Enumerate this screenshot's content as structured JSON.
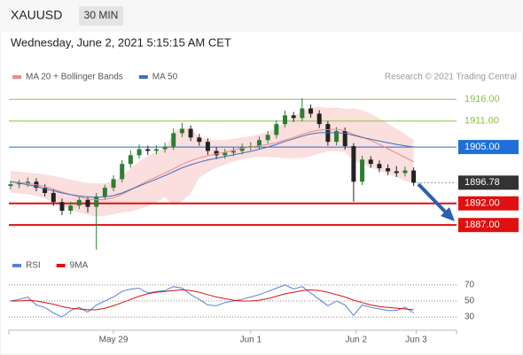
{
  "header": {
    "symbol": "XAUUSD",
    "timeframe": "30 MIN",
    "date": "Wednesday, June 2, 2021 5:15:15 AM CET",
    "source": "Research © 2021 Trading Central"
  },
  "chart_data": [
    {
      "type": "candlestick",
      "up_color": "#2e7d32",
      "down_color": "#222222",
      "xlim": [
        -0.2,
        52
      ],
      "ylim": [
        1880.5,
        1918.5
      ],
      "open": [
        1896.0,
        1896.4,
        1896.6,
        1897.0,
        1895.6,
        1894.4,
        1892.3,
        1890.3,
        1891.5,
        1892.8,
        1891.2,
        1893.6,
        1895.6,
        1897.6,
        1901.1,
        1903.1,
        1904.5,
        1904.1,
        1904.5,
        1905.1,
        1908.2,
        1909.2,
        1907.2,
        1906.2,
        1904.1,
        1903.1,
        1903.7,
        1904.1,
        1905.0,
        1905.2,
        1906.6,
        1907.8,
        1910.3,
        1912.3,
        1911.7,
        1913.9,
        1912.7,
        1910.3,
        1906.2,
        1908.7,
        1905.2,
        1897.0,
        1902.1,
        1901.1,
        1900.1,
        1899.4,
        1899.0,
        1899.6
      ],
      "high": [
        1897.2,
        1897.4,
        1898.0,
        1897.8,
        1896.4,
        1895.2,
        1893.1,
        1892.4,
        1893.6,
        1893.5,
        1894.4,
        1896.3,
        1898.5,
        1902.0,
        1904.2,
        1905.6,
        1905.3,
        1905.4,
        1906.0,
        1909.3,
        1910.6,
        1910.0,
        1908.0,
        1907.0,
        1905.0,
        1904.6,
        1904.9,
        1905.8,
        1906.1,
        1907.4,
        1908.7,
        1911.2,
        1913.4,
        1913.1,
        1916.3,
        1914.8,
        1913.5,
        1911.0,
        1909.6,
        1909.5,
        1905.9,
        1903.0,
        1902.9,
        1901.9,
        1901.0,
        1900.6,
        1900.5,
        1900.3
      ],
      "low": [
        1895.2,
        1895.5,
        1895.8,
        1894.8,
        1893.6,
        1891.4,
        1889.3,
        1889.5,
        1890.7,
        1889.9,
        1881.3,
        1892.8,
        1894.8,
        1896.8,
        1900.2,
        1902.3,
        1903.2,
        1903.3,
        1903.7,
        1904.3,
        1907.3,
        1906.4,
        1905.3,
        1903.2,
        1902.2,
        1902.3,
        1902.9,
        1903.3,
        1904.2,
        1904.4,
        1905.8,
        1907.0,
        1909.5,
        1910.8,
        1910.9,
        1911.8,
        1909.4,
        1905.3,
        1905.4,
        1904.4,
        1892.4,
        1896.2,
        1900.2,
        1899.2,
        1898.5,
        1898.1,
        1898.2,
        1896.0
      ],
      "close": [
        1896.4,
        1896.6,
        1897.0,
        1895.6,
        1894.4,
        1892.3,
        1890.3,
        1891.5,
        1892.8,
        1891.2,
        1893.6,
        1895.6,
        1897.6,
        1901.1,
        1903.1,
        1904.5,
        1904.1,
        1904.5,
        1905.1,
        1908.2,
        1909.2,
        1907.2,
        1906.2,
        1904.1,
        1903.1,
        1903.7,
        1904.1,
        1905.0,
        1905.2,
        1906.6,
        1907.8,
        1910.3,
        1912.3,
        1911.7,
        1913.9,
        1912.7,
        1910.3,
        1906.2,
        1908.7,
        1905.2,
        1897.0,
        1902.1,
        1901.1,
        1900.1,
        1899.4,
        1899.0,
        1899.6,
        1896.78
      ],
      "series": [
        {
          "name": "MA 20 + Bollinger Bands",
          "color": "#e88a8a",
          "band_color": "#fbdede",
          "values": [
            1897.0,
            1896.8,
            1896.6,
            1896.3,
            1895.9,
            1895.3,
            1894.6,
            1894.0,
            1893.5,
            1893.0,
            1892.8,
            1892.9,
            1893.3,
            1894.1,
            1895.1,
            1896.2,
            1897.2,
            1898.1,
            1899.0,
            1900.0,
            1901.0,
            1901.8,
            1902.5,
            1903.0,
            1903.4,
            1903.8,
            1904.3,
            1904.7,
            1905.0,
            1905.3,
            1905.6,
            1906.0,
            1906.6,
            1907.2,
            1907.9,
            1908.5,
            1908.9,
            1909.0,
            1909.1,
            1908.8,
            1907.9,
            1907.3,
            1906.5,
            1905.6,
            1904.6,
            1903.6,
            1902.6,
            1901.6
          ],
          "upper": [
            1899.5,
            1899.3,
            1899.1,
            1898.9,
            1898.7,
            1898.3,
            1897.9,
            1897.5,
            1897.1,
            1896.7,
            1896.6,
            1896.7,
            1897.1,
            1898.3,
            1900.1,
            1901.7,
            1903.0,
            1903.9,
            1904.6,
            1908.5,
            1909.5,
            1909.3,
            1907.1,
            1906.8,
            1906.6,
            1906.6,
            1906.9,
            1907.2,
            1907.5,
            1907.9,
            1908.5,
            1909.4,
            1910.8,
            1912.0,
            1913.3,
            1914.1,
            1914.3,
            1914.0,
            1914.1,
            1913.8,
            1913.9,
            1913.5,
            1912.7,
            1911.6,
            1910.4,
            1909.2,
            1908.0,
            1906.6
          ],
          "lower": [
            1894.5,
            1894.3,
            1894.1,
            1893.7,
            1893.1,
            1892.3,
            1891.3,
            1890.5,
            1889.9,
            1889.3,
            1889.0,
            1889.1,
            1889.5,
            1889.9,
            1890.1,
            1890.7,
            1891.4,
            1892.3,
            1893.4,
            1891.5,
            1892.5,
            1894.3,
            1897.9,
            1899.2,
            1900.2,
            1901.0,
            1901.7,
            1902.2,
            1902.5,
            1902.7,
            1902.7,
            1902.6,
            1902.4,
            1902.4,
            1902.5,
            1902.9,
            1903.5,
            1904.0,
            1904.1,
            1903.8,
            1901.9,
            1901.1,
            1900.3,
            1899.6,
            1898.8,
            1898.0,
            1897.2,
            1896.6
          ]
        },
        {
          "name": "MA 50",
          "color": "#3f6fb5",
          "values": [
            1897.0,
            1896.7,
            1896.3,
            1895.9,
            1895.4,
            1894.9,
            1894.4,
            1894.0,
            1893.7,
            1893.5,
            1893.4,
            1893.5,
            1893.8,
            1894.4,
            1895.2,
            1896.0,
            1896.8,
            1897.6,
            1898.4,
            1899.3,
            1900.2,
            1900.9,
            1901.5,
            1902.0,
            1902.4,
            1902.8,
            1903.2,
            1903.6,
            1904.0,
            1904.5,
            1905.0,
            1905.6,
            1906.3,
            1906.9,
            1907.5,
            1908.0,
            1908.3,
            1908.3,
            1908.3,
            1908.2,
            1907.7,
            1907.2,
            1906.8,
            1906.4,
            1906.0,
            1905.6,
            1905.3,
            1905.0
          ]
        }
      ],
      "levels": [
        {
          "value": 1916,
          "label": "1916.00",
          "color": "#8bc34a",
          "style": "text"
        },
        {
          "value": 1911,
          "label": "1911.00",
          "color": "#8bc34a",
          "style": "text"
        },
        {
          "value": 1905,
          "label": "1905.00",
          "color": "#1e6fd9",
          "style": "box"
        },
        {
          "value": 1896.78,
          "label": "1896.78",
          "color": "#333333",
          "style": "last"
        },
        {
          "value": 1892,
          "label": "1892.00",
          "color": "#e01010",
          "style": "box"
        },
        {
          "value": 1887,
          "label": "1887.00",
          "color": "#e01010",
          "style": "box"
        }
      ]
    },
    {
      "type": "line",
      "xlim": [
        -0.2,
        52
      ],
      "ylim": [
        19,
        81
      ],
      "yticks": [
        30,
        50,
        70
      ],
      "grid": true,
      "xticks": [
        {
          "value": 12,
          "label": "May 29"
        },
        {
          "value": 28,
          "label": "Jun 1"
        },
        {
          "value": 40.3,
          "label": "Jun 2"
        },
        {
          "value": 47.3,
          "label": "Jun 3"
        }
      ],
      "series": [
        {
          "name": "RSI",
          "color": "#5b7fd6",
          "values": [
            50,
            52,
            55,
            45,
            42,
            35,
            30,
            38,
            42,
            36,
            45,
            50,
            55,
            62,
            65,
            66,
            60,
            62,
            63,
            68,
            66,
            58,
            52,
            45,
            44,
            48,
            50,
            52,
            55,
            58,
            62,
            66,
            70,
            65,
            68,
            60,
            52,
            44,
            50,
            45,
            32,
            45,
            42,
            40,
            38,
            38,
            42,
            35
          ]
        },
        {
          "name": "9MA",
          "color": "#e01010",
          "values": [
            50,
            50,
            51,
            50,
            48,
            46,
            43,
            41,
            40,
            39,
            39,
            41,
            44,
            48,
            52,
            56,
            59,
            61,
            62,
            63,
            64,
            63,
            61,
            58,
            55,
            53,
            51,
            50,
            50,
            51,
            53,
            56,
            59,
            61,
            63,
            64,
            63,
            61,
            58,
            55,
            51,
            48,
            45,
            43,
            42,
            41,
            40,
            39
          ]
        }
      ]
    }
  ]
}
